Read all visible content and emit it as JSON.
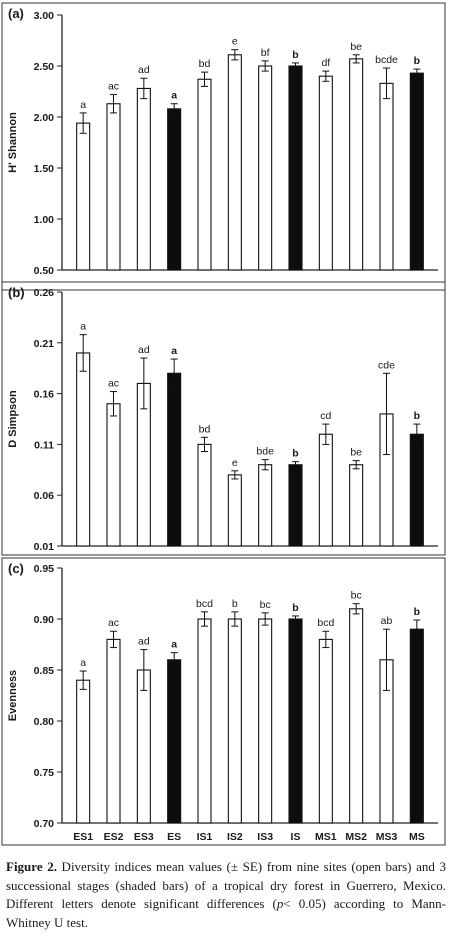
{
  "chart_data": [
    {
      "type": "bar",
      "panel_label": "(a)",
      "ylabel": "H' Shannon",
      "ylim": [
        0.5,
        3.0
      ],
      "yticks": [
        "0.50",
        "1.00",
        "1.50",
        "2.00",
        "2.50",
        "3.00"
      ],
      "categories": [
        "ES1",
        "ES2",
        "ES3",
        "ES",
        "IS1",
        "IS2",
        "IS3",
        "IS",
        "MS1",
        "MS2",
        "MS3",
        "MS"
      ],
      "values": [
        1.94,
        2.13,
        2.28,
        2.08,
        2.37,
        2.61,
        2.5,
        2.5,
        2.4,
        2.57,
        2.33,
        2.43
      ],
      "errors": [
        0.1,
        0.09,
        0.1,
        0.05,
        0.07,
        0.05,
        0.05,
        0.03,
        0.05,
        0.04,
        0.15,
        0.04
      ],
      "letters": [
        "a",
        "ac",
        "ad",
        "a",
        "bd",
        "e",
        "bf",
        "b",
        "df",
        "be",
        "bcde",
        "b"
      ],
      "shaded": [
        false,
        false,
        false,
        true,
        false,
        false,
        false,
        true,
        false,
        false,
        false,
        true
      ]
    },
    {
      "type": "bar",
      "panel_label": "(b)",
      "ylabel": "D Simpson",
      "ylim": [
        0.01,
        0.26
      ],
      "yticks": [
        "0.01",
        "0.06",
        "0.11",
        "0.16",
        "0.21",
        "0.26"
      ],
      "categories": [
        "ES1",
        "ES2",
        "ES3",
        "ES",
        "IS1",
        "IS2",
        "IS3",
        "IS",
        "MS1",
        "MS2",
        "MS3",
        "MS"
      ],
      "values": [
        0.2,
        0.15,
        0.17,
        0.18,
        0.11,
        0.08,
        0.09,
        0.09,
        0.12,
        0.09,
        0.14,
        0.12
      ],
      "errors": [
        0.018,
        0.012,
        0.025,
        0.014,
        0.007,
        0.004,
        0.005,
        0.003,
        0.01,
        0.004,
        0.04,
        0.01
      ],
      "letters": [
        "a",
        "ac",
        "ad",
        "a",
        "bd",
        "e",
        "bde",
        "b",
        "cd",
        "be",
        "cde",
        "b"
      ],
      "shaded": [
        false,
        false,
        false,
        true,
        false,
        false,
        false,
        true,
        false,
        false,
        false,
        true
      ]
    },
    {
      "type": "bar",
      "panel_label": "(c)",
      "ylabel": "Evenness",
      "ylim": [
        0.7,
        0.95
      ],
      "yticks": [
        "0.70",
        "0.75",
        "0.80",
        "0.85",
        "0.90",
        "0.95"
      ],
      "categories": [
        "ES1",
        "ES2",
        "ES3",
        "ES",
        "IS1",
        "IS2",
        "IS3",
        "IS",
        "MS1",
        "MS2",
        "MS3",
        "MS"
      ],
      "values": [
        0.84,
        0.88,
        0.85,
        0.86,
        0.9,
        0.9,
        0.9,
        0.9,
        0.88,
        0.91,
        0.86,
        0.89
      ],
      "errors": [
        0.009,
        0.008,
        0.02,
        0.007,
        0.007,
        0.007,
        0.006,
        0.003,
        0.008,
        0.005,
        0.03,
        0.009
      ],
      "letters": [
        "a",
        "ac",
        "ad",
        "a",
        "bcd",
        "b",
        "bc",
        "b",
        "bcd",
        "bc",
        "ab",
        "b"
      ],
      "shaded": [
        false,
        false,
        false,
        true,
        false,
        false,
        false,
        true,
        false,
        false,
        false,
        true
      ]
    }
  ],
  "colors": {
    "open_bar": "#ffffff",
    "shaded_bar": "#0d0d0d",
    "axis": "#222222",
    "frame": "#333333"
  },
  "caption": {
    "label": "Figure 2.",
    "text_1": " Diversity indices mean values (± SE) from nine sites (open bars) and 3 successional stages (shaded bars) of a tropical dry forest in Guerrero, Mexico. Different letters denote significant differences (",
    "p_symbol": "p",
    "text_2": "< 0.05) according to Mann-Whitney U test."
  }
}
